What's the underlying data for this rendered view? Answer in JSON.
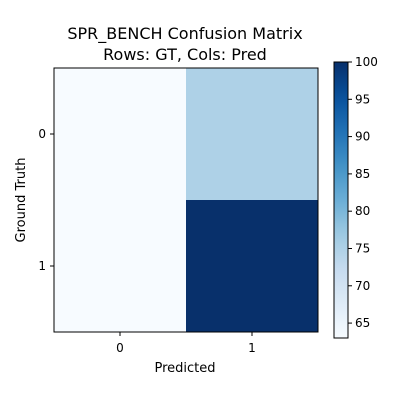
{
  "chart_data": {
    "type": "heatmap",
    "title": "SPR_BENCH Confusion Matrix",
    "subtitle": "Rows: GT, Cols: Pred",
    "xlabel": "Predicted",
    "ylabel": "Ground Truth",
    "x_categories": [
      "0",
      "1"
    ],
    "y_categories": [
      "0",
      "1"
    ],
    "values": [
      [
        63,
        75
      ],
      [
        63,
        100
      ]
    ],
    "colormap": "Blues",
    "color_range": [
      63,
      100
    ],
    "colorbar": {
      "ticks": [
        65,
        70,
        75,
        80,
        85,
        90,
        95,
        100
      ],
      "tick_labels": [
        "65",
        "70",
        "75",
        "80",
        "85",
        "90",
        "95",
        "100"
      ]
    },
    "grid": false
  }
}
